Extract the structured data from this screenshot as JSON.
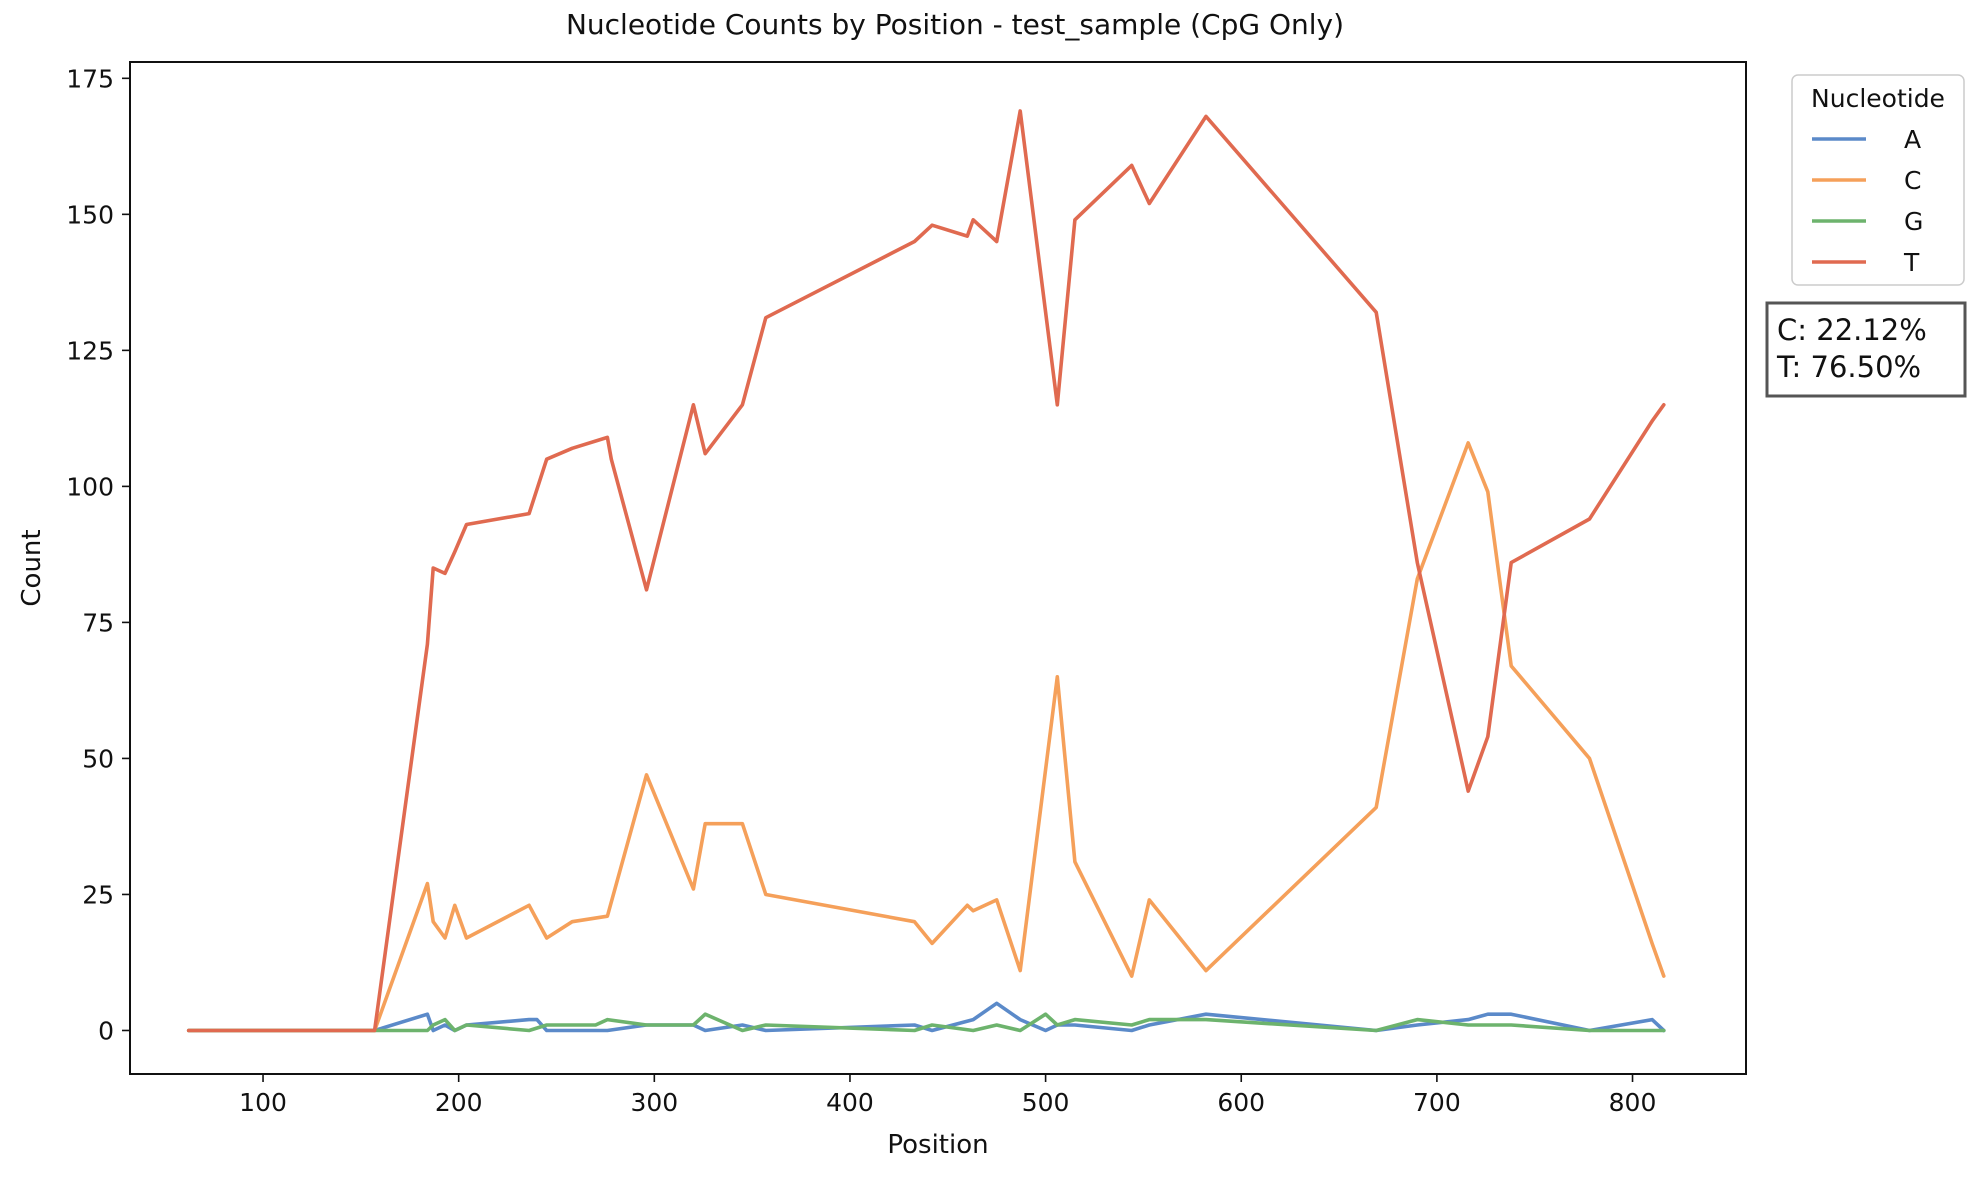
{
  "chart_data": {
    "type": "line",
    "title": "Nucleotide Counts by Position - test_sample (CpG Only)",
    "xlabel": "Position",
    "ylabel": "Count",
    "xlim": [
      32,
      858
    ],
    "ylim": [
      -8,
      178
    ],
    "xticks": [
      100,
      200,
      300,
      400,
      500,
      600,
      700,
      800
    ],
    "yticks": [
      0,
      25,
      50,
      75,
      100,
      125,
      150,
      175
    ],
    "grid": false,
    "legend": {
      "title": "Nucleotide",
      "position": "outside-right-top"
    },
    "annotation": [
      "C: 22.12%",
      "T: 76.50%"
    ],
    "series": [
      {
        "name": "A",
        "color": "#5b8ac9",
        "points": [
          [
            62,
            0
          ],
          [
            157,
            0
          ],
          [
            184,
            3
          ],
          [
            187,
            0
          ],
          [
            193,
            1
          ],
          [
            198,
            0
          ],
          [
            204,
            1
          ],
          [
            236,
            2
          ],
          [
            240,
            2
          ],
          [
            245,
            0
          ],
          [
            276,
            0
          ],
          [
            296,
            1
          ],
          [
            320,
            1
          ],
          [
            326,
            0
          ],
          [
            345,
            1
          ],
          [
            357,
            0
          ],
          [
            433,
            1
          ],
          [
            442,
            0
          ],
          [
            463,
            2
          ],
          [
            475,
            5
          ],
          [
            487,
            2
          ],
          [
            500,
            0
          ],
          [
            506,
            1
          ],
          [
            515,
            1
          ],
          [
            544,
            0
          ],
          [
            553,
            1
          ],
          [
            582,
            3
          ],
          [
            669,
            0
          ],
          [
            690,
            1
          ],
          [
            716,
            2
          ],
          [
            726,
            3
          ],
          [
            738,
            3
          ],
          [
            778,
            0
          ],
          [
            810,
            2
          ],
          [
            816,
            0
          ]
        ]
      },
      {
        "name": "C",
        "color": "#f5a05a",
        "points": [
          [
            62,
            0
          ],
          [
            157,
            0
          ],
          [
            184,
            27
          ],
          [
            187,
            20
          ],
          [
            193,
            17
          ],
          [
            198,
            23
          ],
          [
            204,
            17
          ],
          [
            236,
            23
          ],
          [
            245,
            17
          ],
          [
            258,
            20
          ],
          [
            276,
            21
          ],
          [
            296,
            47
          ],
          [
            320,
            26
          ],
          [
            326,
            38
          ],
          [
            345,
            38
          ],
          [
            357,
            25
          ],
          [
            433,
            20
          ],
          [
            442,
            16
          ],
          [
            460,
            23
          ],
          [
            463,
            22
          ],
          [
            475,
            24
          ],
          [
            487,
            11
          ],
          [
            506,
            65
          ],
          [
            515,
            31
          ],
          [
            544,
            10
          ],
          [
            553,
            24
          ],
          [
            582,
            11
          ],
          [
            669,
            41
          ],
          [
            690,
            83
          ],
          [
            716,
            108
          ],
          [
            726,
            99
          ],
          [
            738,
            67
          ],
          [
            778,
            50
          ],
          [
            810,
            16
          ],
          [
            816,
            10
          ]
        ]
      },
      {
        "name": "G",
        "color": "#6db36d",
        "points": [
          [
            62,
            0
          ],
          [
            157,
            0
          ],
          [
            184,
            0
          ],
          [
            187,
            1
          ],
          [
            193,
            2
          ],
          [
            198,
            0
          ],
          [
            204,
            1
          ],
          [
            236,
            0
          ],
          [
            245,
            1
          ],
          [
            270,
            1
          ],
          [
            276,
            2
          ],
          [
            296,
            1
          ],
          [
            320,
            1
          ],
          [
            326,
            3
          ],
          [
            345,
            0
          ],
          [
            357,
            1
          ],
          [
            433,
            0
          ],
          [
            442,
            1
          ],
          [
            463,
            0
          ],
          [
            475,
            1
          ],
          [
            487,
            0
          ],
          [
            500,
            3
          ],
          [
            506,
            1
          ],
          [
            515,
            2
          ],
          [
            544,
            1
          ],
          [
            553,
            2
          ],
          [
            582,
            2
          ],
          [
            669,
            0
          ],
          [
            690,
            2
          ],
          [
            716,
            1
          ],
          [
            738,
            1
          ],
          [
            778,
            0
          ],
          [
            816,
            0
          ]
        ]
      },
      {
        "name": "T",
        "color": "#e06a50",
        "points": [
          [
            62,
            0
          ],
          [
            157,
            0
          ],
          [
            184,
            71
          ],
          [
            187,
            85
          ],
          [
            193,
            84
          ],
          [
            198,
            88
          ],
          [
            204,
            93
          ],
          [
            236,
            95
          ],
          [
            245,
            105
          ],
          [
            258,
            107
          ],
          [
            276,
            109
          ],
          [
            278,
            105
          ],
          [
            296,
            81
          ],
          [
            320,
            115
          ],
          [
            326,
            106
          ],
          [
            345,
            115
          ],
          [
            357,
            131
          ],
          [
            433,
            145
          ],
          [
            442,
            148
          ],
          [
            460,
            146
          ],
          [
            463,
            149
          ],
          [
            469,
            147
          ],
          [
            475,
            145
          ],
          [
            487,
            169
          ],
          [
            506,
            115
          ],
          [
            515,
            149
          ],
          [
            544,
            159
          ],
          [
            553,
            152
          ],
          [
            582,
            168
          ],
          [
            669,
            132
          ],
          [
            690,
            86
          ],
          [
            716,
            44
          ],
          [
            726,
            54
          ],
          [
            738,
            86
          ],
          [
            778,
            94
          ],
          [
            810,
            112
          ],
          [
            816,
            115
          ]
        ]
      }
    ]
  }
}
